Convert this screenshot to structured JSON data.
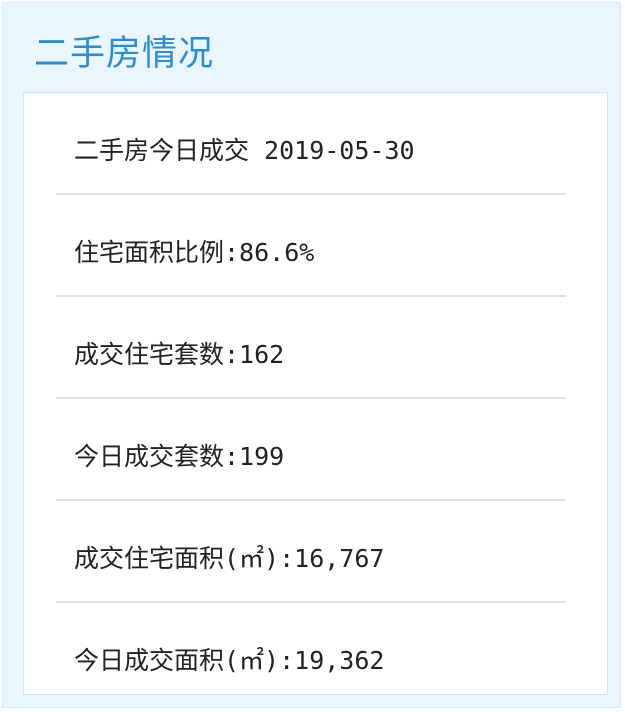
{
  "title": "二手房情况",
  "rows": [
    "二手房今日成交 2019-05-30",
    "住宅面积比例:86.6%",
    "成交住宅套数:162",
    "今日成交套数:199",
    "成交住宅面积(㎡):16,767",
    "今日成交面积(㎡):19,362"
  ],
  "colors": {
    "title": "#2c8bd6",
    "background": "#eaf6fd"
  }
}
